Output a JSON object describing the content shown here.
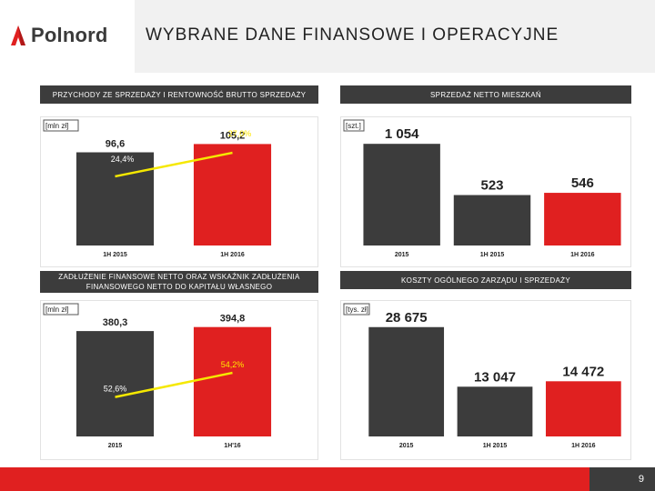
{
  "logo": {
    "text": "Polnord"
  },
  "page_title": "WYBRANE DANE FINANSOWE I OPERACYJNE",
  "page_number": "9",
  "colors": {
    "accent_red": "#e02020",
    "bar_gray": "#3c3c3c",
    "line_yellow": "#f5e800"
  },
  "panels": {
    "revenue": {
      "header": "PRZYCHODY ZE SPRZEDAŻY I RENTOWNOŚĆ BRUTTO SPRZEDAŻY",
      "unit": "[mln zł]"
    },
    "apartments": {
      "header": "SPRZEDAŻ NETTO MIESZKAŃ",
      "unit": "[szt.]"
    },
    "debt": {
      "header": "ZADŁUŻENIE FINANSOWE NETTO ORAZ WSKAŹNIK ZADŁUŻENIA FINANSOWEGO NETTO DO KAPITAŁU WŁASNEGO",
      "unit": "[mln zł]"
    },
    "costs": {
      "header": "KOSZTY OGÓLNEGO ZARZĄDU I SPRZEDAŻY",
      "unit": "[tys. zł]"
    }
  },
  "chart_data": [
    {
      "type": "bar",
      "categories": [
        "1H 2015",
        "1H 2016"
      ],
      "series": [
        {
          "values": [
            96.6,
            105.2
          ],
          "value_labels": [
            "96,6",
            "105,2"
          ]
        },
        {
          "values": [
            24.4,
            27.0
          ],
          "value_labels": [
            "24,4%",
            "27,0%"
          ],
          "render": "line"
        }
      ]
    },
    {
      "type": "bar",
      "categories": [
        "2015",
        "1H 2015",
        "1H 2016"
      ],
      "values": [
        1054,
        523,
        546
      ],
      "value_labels": [
        "1 054",
        "523",
        "546"
      ]
    },
    {
      "type": "bar",
      "categories": [
        "2015",
        "1H'16"
      ],
      "series": [
        {
          "values": [
            380.3,
            394.8
          ],
          "value_labels": [
            "380,3",
            "394,8"
          ]
        },
        {
          "values": [
            52.6,
            54.2
          ],
          "value_labels": [
            "52,6%",
            "54,2%"
          ],
          "render": "line"
        }
      ]
    },
    {
      "type": "bar",
      "categories": [
        "2015",
        "1H 2015",
        "1H 2016"
      ],
      "values": [
        28675,
        13047,
        14472
      ],
      "value_labels": [
        "28 675",
        "13 047",
        "14 472"
      ]
    }
  ]
}
